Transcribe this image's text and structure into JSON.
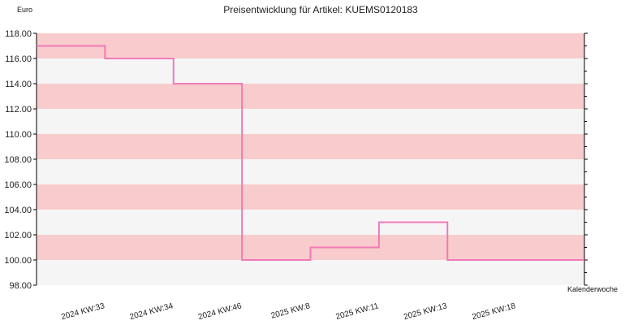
{
  "chart_data": {
    "type": "line",
    "line_style": "step",
    "title": "Preisentwicklung für Artikel: KUEMS0120183",
    "ylabel": "Euro",
    "xlabel": "Kalenderwoche",
    "ylim": [
      98,
      118
    ],
    "y_ticks": [
      "98.00",
      "100.00",
      "102.00",
      "104.00",
      "106.00",
      "108.00",
      "110.00",
      "112.00",
      "114.00",
      "116.00",
      "118.00"
    ],
    "categories": [
      "2024 KW:33",
      "2024 KW:34",
      "2024 KW:46",
      "2025 KW:8",
      "2025 KW:11",
      "2025 KW:13",
      "2025 KW:18"
    ],
    "series": [
      {
        "values": [
          117,
          116,
          114,
          100,
          101,
          103,
          100
        ]
      }
    ],
    "grid": true,
    "colors": {
      "line": "#f07ab8",
      "band_dark": "#f8cccc",
      "band_light": "#f5f5f5",
      "axis": "#000000"
    }
  }
}
